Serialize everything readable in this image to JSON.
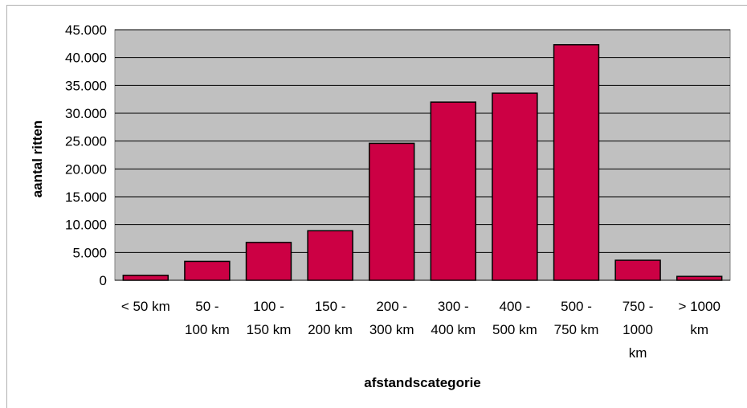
{
  "chart_data": {
    "type": "bar",
    "title": "",
    "xlabel": "afstandscategorie",
    "ylabel": "aantal ritten",
    "categories": [
      "< 50 km",
      "50 - 100 km",
      "100 - 150 km",
      "150 - 200 km",
      "200 - 300 km",
      "300 - 400 km",
      "400 - 500 km",
      "500 - 750 km",
      "750 - 1000 km",
      "> 1000 km"
    ],
    "category_label_lines": [
      [
        "< 50 km"
      ],
      [
        "50 -",
        "100 km"
      ],
      [
        "100 -",
        "150 km"
      ],
      [
        "150 -",
        "200 km"
      ],
      [
        "200 -",
        "300 km"
      ],
      [
        "300 -",
        "400 km"
      ],
      [
        "400 -",
        "500 km"
      ],
      [
        "500 -",
        "750 km"
      ],
      [
        "750 -",
        "1000",
        "km"
      ],
      [
        "> 1000",
        "km"
      ]
    ],
    "values": [
      900,
      3400,
      6800,
      8900,
      24600,
      32000,
      33600,
      42300,
      3600,
      700
    ],
    "ylim": [
      0,
      45000
    ],
    "yticks": [
      0,
      5000,
      10000,
      15000,
      20000,
      25000,
      30000,
      35000,
      40000,
      45000
    ],
    "ytick_labels": [
      "0",
      "5.000",
      "10.000",
      "15.000",
      "20.000",
      "25.000",
      "30.000",
      "35.000",
      "40.000",
      "45.000"
    ],
    "grid": true,
    "legend": "none",
    "colors": {
      "bar": "#cc0044",
      "plot_background": "#c0c0c0",
      "grid": "#000000"
    }
  }
}
